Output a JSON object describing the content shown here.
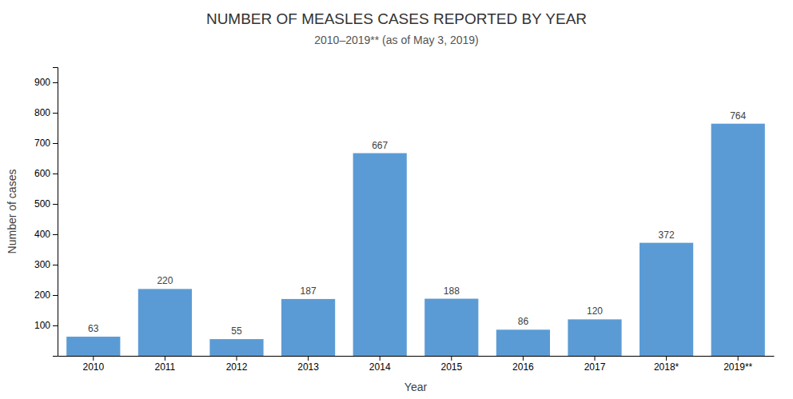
{
  "chart_data": {
    "type": "bar",
    "title": "NUMBER OF MEASLES CASES REPORTED BY YEAR",
    "subtitle": "2010–2019** (as of May 3, 2019)",
    "x_label": "Year",
    "y_label": "Number of cases",
    "categories": [
      "2010",
      "2011",
      "2012",
      "2013",
      "2014",
      "2015",
      "2016",
      "2017",
      "2018*",
      "2019**"
    ],
    "values": [
      63,
      220,
      55,
      187,
      667,
      188,
      86,
      120,
      372,
      764
    ],
    "color": "#5b9bd5",
    "ylim": [
      0,
      950
    ],
    "yticks": [
      100,
      200,
      300,
      400,
      500,
      600,
      700,
      800,
      900
    ],
    "grid": false,
    "data_labels": true
  }
}
